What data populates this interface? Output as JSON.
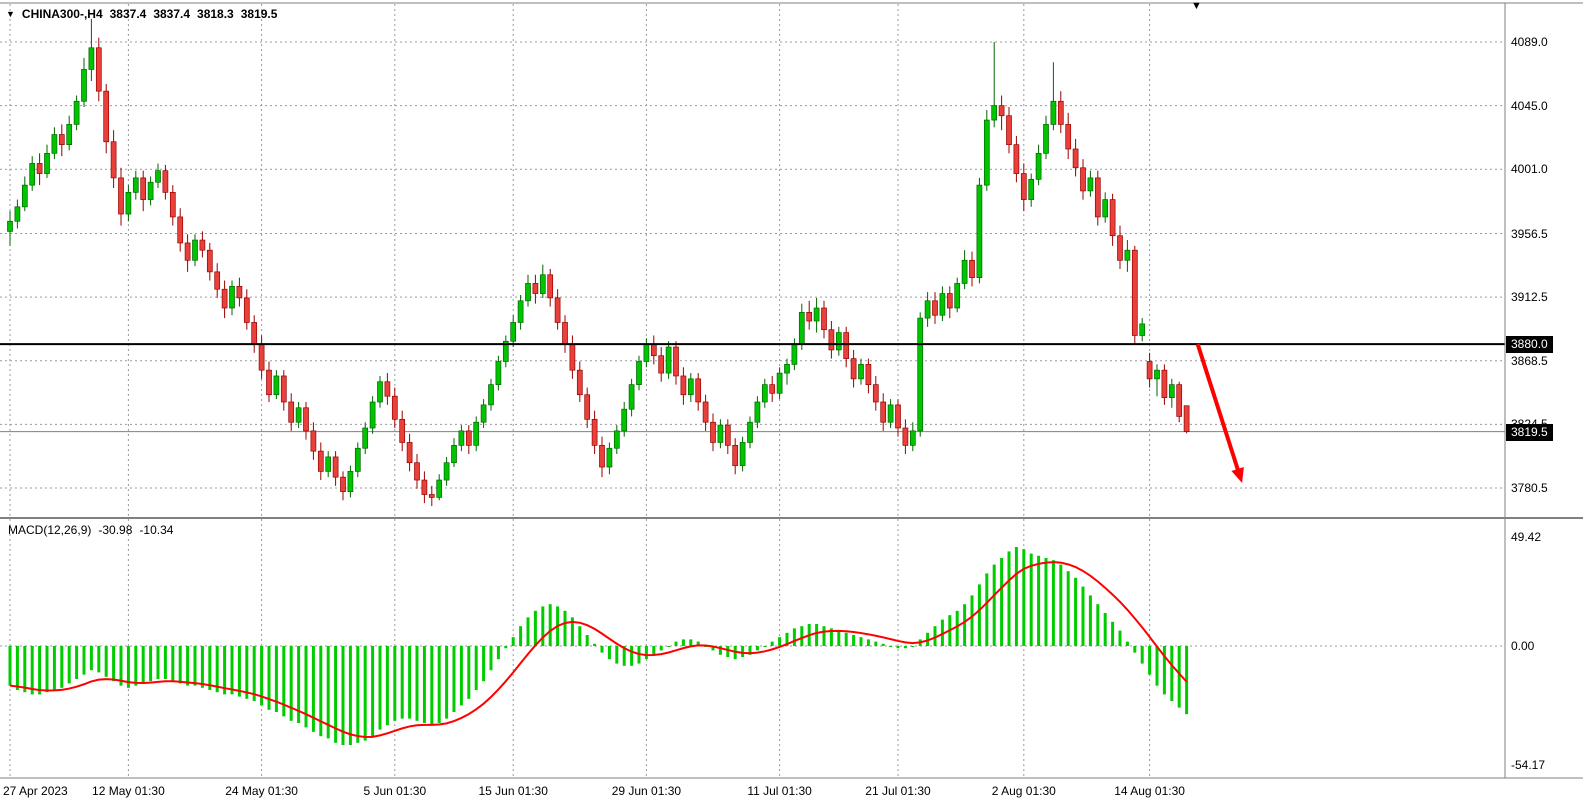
{
  "header": {
    "dropdown_icon": "▼",
    "symbol_period": "CHINA300-,H4",
    "open": "3837.4",
    "high": "3837.4",
    "low": "3818.3",
    "close": "3819.5"
  },
  "chart_shift_icon": "▼",
  "colors": {
    "up": "#00C400",
    "up_stroke": "#006600",
    "down": "#E8403A",
    "down_stroke": "#990000",
    "macd_hist": "#00CC00",
    "macd_signal": "#FF0000",
    "grid": "#999999",
    "hline": "#000000",
    "last_price_line": "#808080",
    "arrow": "#FF0000",
    "badge_bg": "#000000",
    "badge_fg": "#FFFFFF"
  },
  "annotation": {
    "type": "arrow-down-right",
    "color": "#FF0000",
    "from": {
      "index": 160.5,
      "price": 3880
    },
    "to": {
      "index": 166.5,
      "price": 3784
    }
  },
  "chart_data": [
    {
      "type": "candlestick",
      "title": "CHINA300-,H4",
      "x_ticks": {
        "labels": [
          "27 Apr 2023",
          "12 May 01:30",
          "24 May 01:30",
          "5 Jun 01:30",
          "15 Jun 01:30",
          "29 Jun 01:30",
          "11 Jul 01:30",
          "21 Jul 01:30",
          "2 Aug 01:30",
          "14 Aug 01:30"
        ],
        "indices": [
          0,
          16,
          34,
          52,
          68,
          86,
          104,
          120,
          137,
          154
        ]
      },
      "y_ticks": {
        "labels": [
          "4089.0",
          "4045.0",
          "4001.0",
          "3956.5",
          "3912.5",
          "3868.5",
          "3824.5",
          "3780.5"
        ],
        "values": [
          4089.0,
          4045.0,
          4001.0,
          3956.5,
          3912.5,
          3868.5,
          3824.5,
          3780.5
        ]
      },
      "hline": {
        "value": 3880.0,
        "label": "3880.0"
      },
      "last_price": {
        "value": 3819.5,
        "label": "3819.5"
      },
      "ohlc": [
        [
          3958,
          3972,
          3948,
          3965
        ],
        [
          3965,
          3980,
          3960,
          3975
        ],
        [
          3975,
          3996,
          3972,
          3990
        ],
        [
          3990,
          4010,
          3986,
          4005
        ],
        [
          4005,
          4012,
          3990,
          3998
        ],
        [
          3998,
          4018,
          3995,
          4012
        ],
        [
          4012,
          4030,
          4008,
          4025
        ],
        [
          4025,
          4032,
          4010,
          4018
        ],
        [
          4018,
          4038,
          4014,
          4032
        ],
        [
          4032,
          4052,
          4028,
          4048
        ],
        [
          4048,
          4078,
          4044,
          4070
        ],
        [
          4070,
          4105,
          4062,
          4085
        ],
        [
          4085,
          4092,
          4048,
          4055
        ],
        [
          4055,
          4060,
          4012,
          4020
        ],
        [
          4020,
          4028,
          3988,
          3995
        ],
        [
          3995,
          4002,
          3962,
          3970
        ],
        [
          3970,
          3990,
          3965,
          3985
        ],
        [
          3985,
          4000,
          3980,
          3995
        ],
        [
          3995,
          4000,
          3972,
          3980
        ],
        [
          3980,
          3996,
          3976,
          3992
        ],
        [
          3992,
          4005,
          3988,
          4000
        ],
        [
          4000,
          4004,
          3980,
          3985
        ],
        [
          3985,
          3990,
          3962,
          3968
        ],
        [
          3968,
          3974,
          3944,
          3950
        ],
        [
          3950,
          3956,
          3930,
          3938
        ],
        [
          3938,
          3956,
          3934,
          3952
        ],
        [
          3952,
          3958,
          3940,
          3945
        ],
        [
          3945,
          3950,
          3924,
          3930
        ],
        [
          3930,
          3936,
          3912,
          3918
        ],
        [
          3918,
          3924,
          3898,
          3905
        ],
        [
          3905,
          3924,
          3900,
          3920
        ],
        [
          3920,
          3926,
          3906,
          3912
        ],
        [
          3912,
          3918,
          3890,
          3895
        ],
        [
          3895,
          3900,
          3874,
          3880
        ],
        [
          3880,
          3886,
          3856,
          3862
        ],
        [
          3862,
          3868,
          3840,
          3845
        ],
        [
          3845,
          3862,
          3842,
          3858
        ],
        [
          3858,
          3862,
          3834,
          3840
        ],
        [
          3840,
          3846,
          3820,
          3826
        ],
        [
          3826,
          3840,
          3822,
          3836
        ],
        [
          3836,
          3840,
          3814,
          3820
        ],
        [
          3820,
          3826,
          3800,
          3806
        ],
        [
          3806,
          3812,
          3786,
          3792
        ],
        [
          3792,
          3806,
          3788,
          3802
        ],
        [
          3802,
          3806,
          3782,
          3788
        ],
        [
          3788,
          3792,
          3772,
          3778
        ],
        [
          3778,
          3796,
          3774,
          3792
        ],
        [
          3792,
          3812,
          3788,
          3808
        ],
        [
          3808,
          3826,
          3804,
          3822
        ],
        [
          3822,
          3844,
          3818,
          3840
        ],
        [
          3840,
          3858,
          3836,
          3854
        ],
        [
          3854,
          3860,
          3838,
          3844
        ],
        [
          3844,
          3850,
          3822,
          3828
        ],
        [
          3828,
          3834,
          3806,
          3812
        ],
        [
          3812,
          3818,
          3792,
          3798
        ],
        [
          3798,
          3804,
          3780,
          3786
        ],
        [
          3786,
          3792,
          3770,
          3776
        ],
        [
          3776,
          3782,
          3768,
          3774
        ],
        [
          3774,
          3790,
          3772,
          3786
        ],
        [
          3786,
          3802,
          3782,
          3798
        ],
        [
          3798,
          3815,
          3795,
          3810
        ],
        [
          3810,
          3824,
          3806,
          3820
        ],
        [
          3820,
          3824,
          3804,
          3810
        ],
        [
          3810,
          3830,
          3806,
          3826
        ],
        [
          3826,
          3842,
          3822,
          3838
        ],
        [
          3838,
          3856,
          3834,
          3852
        ],
        [
          3852,
          3872,
          3848,
          3868
        ],
        [
          3868,
          3886,
          3864,
          3882
        ],
        [
          3882,
          3900,
          3878,
          3895
        ],
        [
          3895,
          3914,
          3890,
          3910
        ],
        [
          3910,
          3928,
          3906,
          3922
        ],
        [
          3922,
          3928,
          3908,
          3915
        ],
        [
          3915,
          3935,
          3912,
          3928
        ],
        [
          3928,
          3932,
          3906,
          3912
        ],
        [
          3912,
          3918,
          3890,
          3895
        ],
        [
          3895,
          3900,
          3874,
          3880
        ],
        [
          3880,
          3886,
          3856,
          3862
        ],
        [
          3862,
          3868,
          3840,
          3845
        ],
        [
          3845,
          3850,
          3822,
          3828
        ],
        [
          3828,
          3834,
          3804,
          3810
        ],
        [
          3810,
          3816,
          3788,
          3795
        ],
        [
          3795,
          3812,
          3790,
          3808
        ],
        [
          3808,
          3824,
          3804,
          3820
        ],
        [
          3820,
          3840,
          3816,
          3835
        ],
        [
          3835,
          3856,
          3830,
          3852
        ],
        [
          3852,
          3872,
          3848,
          3868
        ],
        [
          3868,
          3884,
          3864,
          3880
        ],
        [
          3880,
          3886,
          3866,
          3872
        ],
        [
          3872,
          3878,
          3854,
          3860
        ],
        [
          3860,
          3882,
          3856,
          3878
        ],
        [
          3878,
          3882,
          3852,
          3858
        ],
        [
          3858,
          3864,
          3838,
          3845
        ],
        [
          3845,
          3860,
          3840,
          3856
        ],
        [
          3856,
          3860,
          3834,
          3840
        ],
        [
          3840,
          3845,
          3820,
          3826
        ],
        [
          3826,
          3832,
          3806,
          3812
        ],
        [
          3812,
          3828,
          3808,
          3824
        ],
        [
          3824,
          3828,
          3804,
          3810
        ],
        [
          3810,
          3815,
          3790,
          3796
        ],
        [
          3796,
          3816,
          3792,
          3812
        ],
        [
          3812,
          3830,
          3808,
          3826
        ],
        [
          3826,
          3844,
          3822,
          3840
        ],
        [
          3840,
          3856,
          3836,
          3852
        ],
        [
          3852,
          3858,
          3840,
          3846
        ],
        [
          3846,
          3864,
          3842,
          3860
        ],
        [
          3860,
          3870,
          3852,
          3866
        ],
        [
          3866,
          3884,
          3862,
          3880
        ],
        [
          3880,
          3908,
          3876,
          3902
        ],
        [
          3902,
          3910,
          3890,
          3896
        ],
        [
          3896,
          3912,
          3888,
          3905
        ],
        [
          3905,
          3910,
          3884,
          3890
        ],
        [
          3890,
          3896,
          3870,
          3876
        ],
        [
          3876,
          3892,
          3872,
          3888
        ],
        [
          3888,
          3892,
          3864,
          3870
        ],
        [
          3870,
          3876,
          3850,
          3856
        ],
        [
          3856,
          3870,
          3852,
          3866
        ],
        [
          3866,
          3870,
          3846,
          3852
        ],
        [
          3852,
          3858,
          3834,
          3840
        ],
        [
          3840,
          3846,
          3820,
          3826
        ],
        [
          3826,
          3842,
          3822,
          3838
        ],
        [
          3838,
          3842,
          3816,
          3822
        ],
        [
          3822,
          3828,
          3804,
          3810
        ],
        [
          3810,
          3826,
          3806,
          3820
        ],
        [
          3820,
          3902,
          3816,
          3898
        ],
        [
          3898,
          3916,
          3892,
          3910
        ],
        [
          3910,
          3916,
          3894,
          3900
        ],
        [
          3900,
          3920,
          3896,
          3915
        ],
        [
          3915,
          3920,
          3898,
          3905
        ],
        [
          3905,
          3926,
          3902,
          3922
        ],
        [
          3922,
          3945,
          3918,
          3938
        ],
        [
          3938,
          3944,
          3920,
          3926
        ],
        [
          3926,
          3995,
          3922,
          3990
        ],
        [
          3990,
          4042,
          3986,
          4035
        ],
        [
          4035,
          4089,
          4030,
          4045
        ],
        [
          4045,
          4052,
          4028,
          4038
        ],
        [
          4038,
          4044,
          4012,
          4018
        ],
        [
          4018,
          4024,
          3992,
          3998
        ],
        [
          3998,
          4005,
          3972,
          3980
        ],
        [
          3980,
          3998,
          3975,
          3994
        ],
        [
          3994,
          4018,
          3990,
          4012
        ],
        [
          4012,
          4038,
          4008,
          4032
        ],
        [
          4032,
          4075,
          4028,
          4048
        ],
        [
          4048,
          4055,
          4026,
          4032
        ],
        [
          4032,
          4040,
          4008,
          4015
        ],
        [
          4015,
          4022,
          3996,
          4002
        ],
        [
          4002,
          4008,
          3980,
          3986
        ],
        [
          3986,
          4000,
          3982,
          3995
        ],
        [
          3995,
          4000,
          3962,
          3968
        ],
        [
          3968,
          3985,
          3964,
          3980
        ],
        [
          3980,
          3984,
          3948,
          3955
        ],
        [
          3955,
          3962,
          3932,
          3938
        ],
        [
          3938,
          3952,
          3930,
          3945
        ],
        [
          3945,
          3948,
          3880,
          3886
        ],
        [
          3886,
          3898,
          3882,
          3894
        ],
        [
          3868,
          3874,
          3850,
          3856
        ],
        [
          3856,
          3866,
          3844,
          3862
        ],
        [
          3862,
          3866,
          3838,
          3843
        ],
        [
          3843,
          3856,
          3836,
          3852
        ],
        [
          3852,
          3854,
          3826,
          3830
        ],
        [
          3837.4,
          3837.4,
          3818.3,
          3819.5
        ]
      ]
    },
    {
      "type": "macd",
      "label": "MACD(12,26,9)",
      "macd_value": "-30.98",
      "signal_value": "-10.34",
      "signal_ema_period": 9,
      "y_ticks": {
        "labels": [
          "49.42",
          "0.00",
          "-54.17"
        ],
        "values": [
          49.42,
          0,
          -54.17
        ]
      },
      "histogram": [
        -18,
        -20,
        -21,
        -22,
        -22,
        -21,
        -20,
        -19,
        -17,
        -15,
        -13,
        -11,
        -12,
        -14,
        -16,
        -18,
        -19,
        -18,
        -17,
        -16,
        -15,
        -15,
        -16,
        -17,
        -18,
        -18,
        -19,
        -20,
        -21,
        -22,
        -22,
        -23,
        -24,
        -25,
        -27,
        -29,
        -30,
        -32,
        -34,
        -35,
        -37,
        -39,
        -41,
        -42,
        -44,
        -45,
        -45,
        -44,
        -43,
        -41,
        -38,
        -36,
        -34,
        -33,
        -33,
        -34,
        -35,
        -36,
        -35,
        -33,
        -30,
        -27,
        -24,
        -20,
        -16,
        -11,
        -6,
        -1,
        4,
        9,
        13,
        16,
        18,
        19,
        18,
        16,
        13,
        9,
        5,
        1,
        -3,
        -6,
        -8,
        -9,
        -9,
        -8,
        -6,
        -4,
        -2,
        0,
        2,
        3,
        3,
        2,
        0,
        -2,
        -4,
        -5,
        -6,
        -5,
        -4,
        -2,
        0,
        2,
        4,
        6,
        8,
        9,
        10,
        10,
        9,
        8,
        7,
        6,
        5,
        4,
        3,
        2,
        1,
        0,
        -1,
        -1,
        0,
        3,
        6,
        9,
        12,
        14,
        16,
        19,
        23,
        28,
        33,
        37,
        40,
        43,
        45,
        44,
        42,
        41,
        40,
        39,
        37,
        34,
        31,
        27,
        23,
        19,
        15,
        11,
        7,
        2,
        -3,
        -8,
        -13,
        -18,
        -22,
        -25,
        -28,
        -30.98
      ]
    }
  ]
}
